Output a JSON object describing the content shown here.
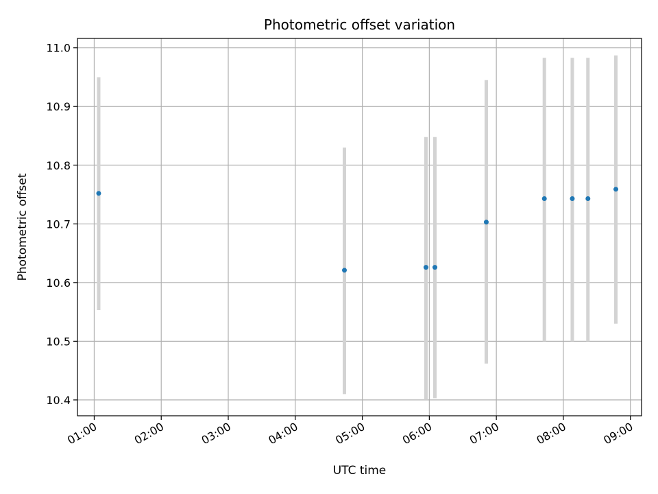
{
  "chart_data": {
    "type": "scatter",
    "title": "Photometric offset variation",
    "xlabel": "UTC time",
    "ylabel": "Photometric offset",
    "x_ticks": [
      "01:00",
      "02:00",
      "03:00",
      "04:00",
      "05:00",
      "06:00",
      "07:00",
      "08:00",
      "09:00"
    ],
    "y_ticks": [
      "10.4",
      "10.5",
      "10.6",
      "10.7",
      "10.8",
      "10.9",
      "11.0"
    ],
    "xlim": [
      "00:45",
      "09:10"
    ],
    "ylim": [
      10.373,
      11.016
    ],
    "grid": true,
    "colors": {
      "points": "#1f77b4",
      "error_bars": "#d3d3d3",
      "grid": "#b0b0b0"
    },
    "points": [
      {
        "time": "01:04",
        "y": 10.752,
        "y_low": 10.553,
        "y_high": 10.95
      },
      {
        "time": "04:44",
        "y": 10.621,
        "y_low": 10.41,
        "y_high": 10.83
      },
      {
        "time": "05:57",
        "y": 10.626,
        "y_low": 10.4,
        "y_high": 10.848
      },
      {
        "time": "06:05",
        "y": 10.626,
        "y_low": 10.403,
        "y_high": 10.848
      },
      {
        "time": "06:51",
        "y": 10.703,
        "y_low": 10.462,
        "y_high": 10.945
      },
      {
        "time": "07:43",
        "y": 10.743,
        "y_low": 10.5,
        "y_high": 10.983
      },
      {
        "time": "08:08",
        "y": 10.743,
        "y_low": 10.5,
        "y_high": 10.983
      },
      {
        "time": "08:22",
        "y": 10.743,
        "y_low": 10.5,
        "y_high": 10.983
      },
      {
        "time": "08:47",
        "y": 10.759,
        "y_low": 10.53,
        "y_high": 10.987
      }
    ]
  }
}
